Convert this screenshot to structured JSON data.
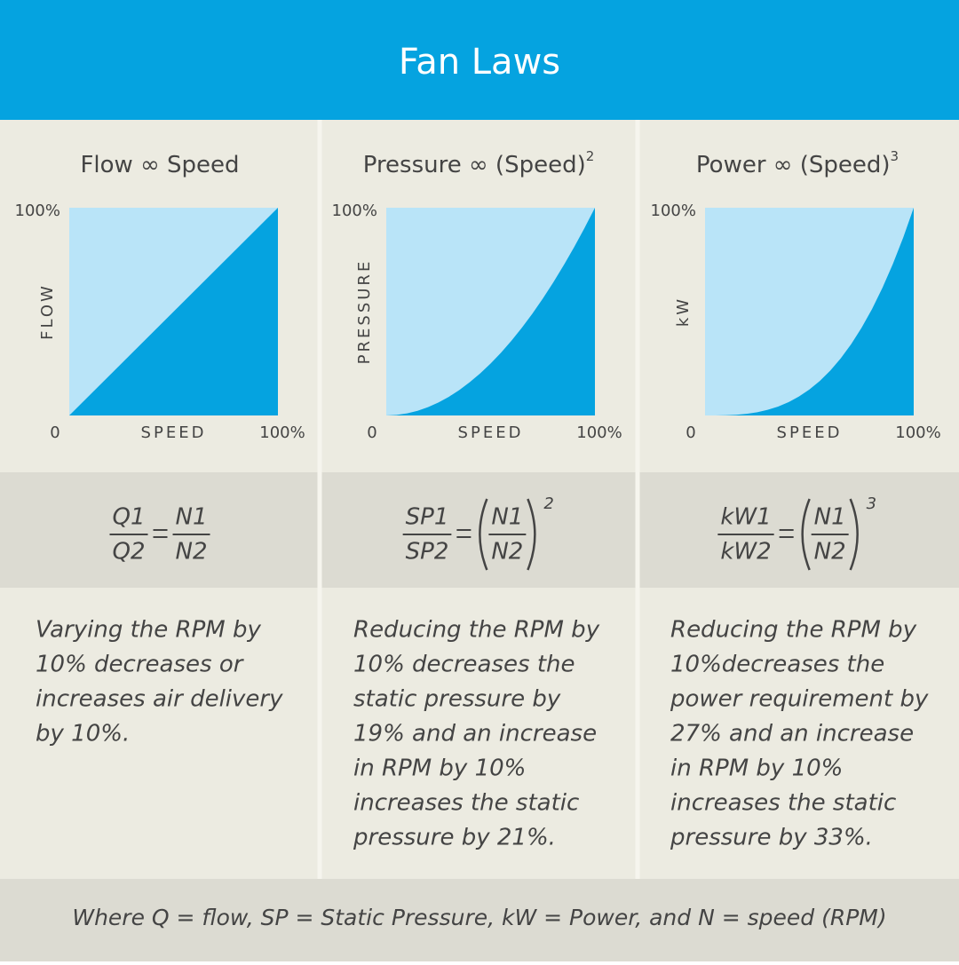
{
  "header": {
    "title": "Fan Laws"
  },
  "chart_data": [
    {
      "type": "area",
      "title": "Flow ∞ Speed",
      "x_label": "SPEED",
      "y_label": "FLOW",
      "series": [
        {
          "x": [
            0,
            100
          ],
          "values": [
            0,
            100
          ],
          "color": "#05a3e0"
        }
      ],
      "plot_background": "#b9e4f8",
      "xlim": [
        0,
        100
      ],
      "ylim": [
        0,
        100
      ],
      "xticks": [
        {
          "value": 0,
          "label": "0"
        },
        {
          "value": 100,
          "label": "100%"
        }
      ],
      "yticks": [
        {
          "value": 100,
          "label": "100%"
        }
      ]
    },
    {
      "type": "area",
      "title": "Pressure ∞ (Speed)",
      "title_superscript": "2",
      "x_label": "SPEED",
      "y_label": "PRESSURE",
      "series": [
        {
          "x": [
            0,
            5,
            10,
            15,
            20,
            25,
            30,
            35,
            40,
            45,
            50,
            55,
            60,
            65,
            70,
            75,
            80,
            85,
            90,
            95,
            100
          ],
          "values": [
            0,
            0.25,
            1,
            2.25,
            4,
            6.25,
            9,
            12.25,
            16,
            20.25,
            25,
            30.25,
            36,
            42.25,
            49,
            56.25,
            64,
            72.25,
            81,
            90.25,
            100
          ],
          "color": "#05a3e0"
        }
      ],
      "plot_background": "#b9e4f8",
      "xlim": [
        0,
        100
      ],
      "ylim": [
        0,
        100
      ],
      "xticks": [
        {
          "value": 0,
          "label": "0"
        },
        {
          "value": 100,
          "label": "100%"
        }
      ],
      "yticks": [
        {
          "value": 100,
          "label": "100%"
        }
      ]
    },
    {
      "type": "area",
      "title": "Power ∞ (Speed)",
      "title_superscript": "3",
      "x_label": "SPEED",
      "y_label": "kW",
      "series": [
        {
          "x": [
            0,
            5,
            10,
            15,
            20,
            25,
            30,
            35,
            40,
            45,
            50,
            55,
            60,
            65,
            70,
            75,
            80,
            85,
            90,
            95,
            100
          ],
          "values": [
            0,
            0.0125,
            0.1,
            0.3375,
            0.8,
            1.5625,
            2.7,
            4.2875,
            6.4,
            9.1125,
            12.5,
            16.6375,
            21.6,
            27.4625,
            34.3,
            42.1875,
            51.2,
            61.4125,
            72.9,
            85.7375,
            100
          ],
          "color": "#05a3e0"
        }
      ],
      "plot_background": "#b9e4f8",
      "xlim": [
        0,
        100
      ],
      "ylim": [
        0,
        100
      ],
      "xticks": [
        {
          "value": 0,
          "label": "0"
        },
        {
          "value": 100,
          "label": "100%"
        }
      ],
      "yticks": [
        {
          "value": 100,
          "label": "100%"
        }
      ]
    }
  ],
  "formulas": [
    {
      "lhs_num": "Q1",
      "lhs_den": "Q2",
      "rhs_num": "N1",
      "rhs_den": "N2"
    },
    {
      "lhs_num": "SP1",
      "lhs_den": "SP2",
      "rhs_num": "N1",
      "rhs_den": "N2",
      "exponent": "2"
    },
    {
      "lhs_num": "kW1",
      "lhs_den": "kW2",
      "rhs_num": "N1",
      "rhs_den": "N2",
      "exponent": "3"
    }
  ],
  "descriptions": [
    [
      "Varying the RPM by",
      "10% decreases or",
      "increases air delivery",
      "by 10%."
    ],
    [
      "Reducing the RPM by",
      "10% decreases the",
      "static pressure by",
      "19% and an increase",
      "in RPM by 10%",
      "increases the static",
      "pressure by 21%."
    ],
    [
      "Reducing the RPM by",
      "10%decreases the",
      "power requirement by",
      "27% and an increase",
      "in RPM by 10%",
      "increases the static",
      "pressure by 33%."
    ]
  ],
  "footer": "Where Q = flow, SP = Static Pressure, kW = Power, and N = speed (RPM)"
}
